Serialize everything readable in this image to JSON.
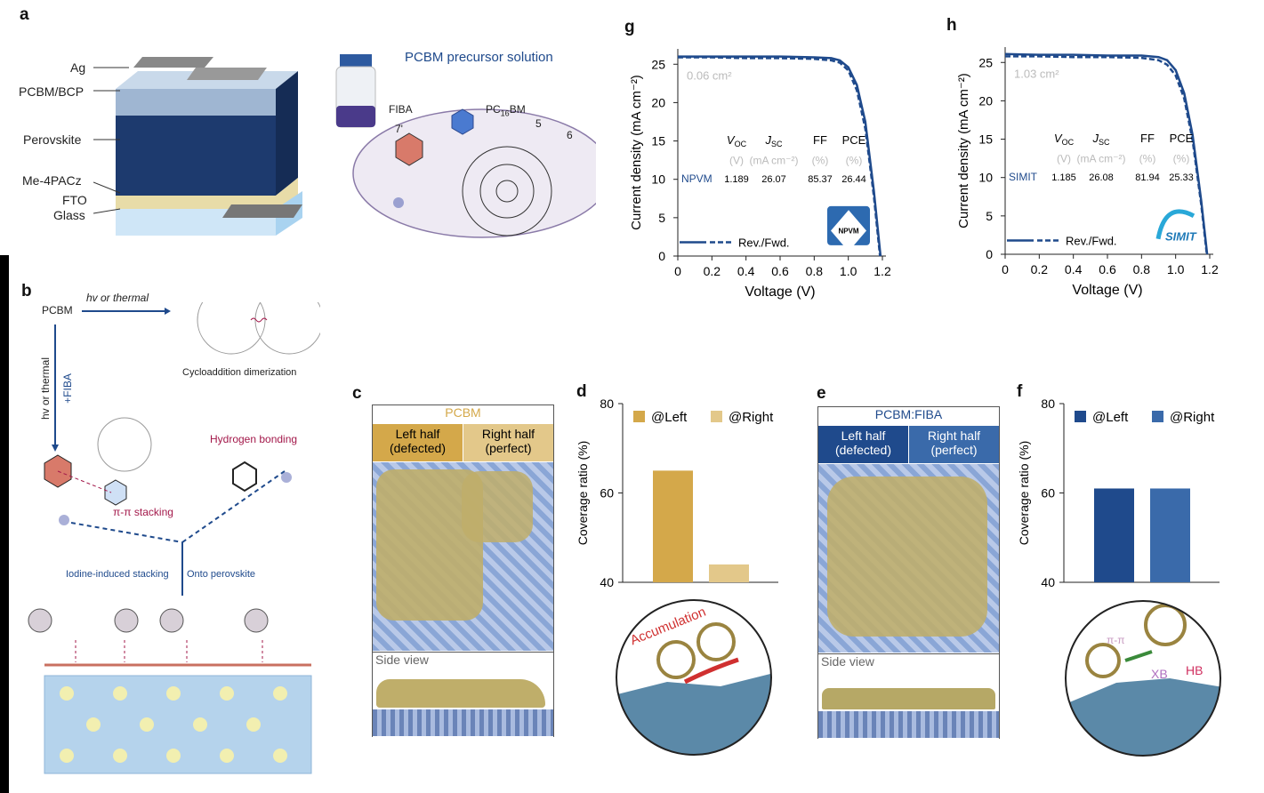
{
  "panels": {
    "a": "a",
    "b": "b",
    "c": "c",
    "d": "d",
    "e": "e",
    "f": "f",
    "g": "g",
    "h": "h"
  },
  "panel_a": {
    "layers": [
      "Ag",
      "PCBM/BCP",
      "Perovskite",
      "Me-4PACz",
      "FTO",
      "Glass"
    ],
    "precursor_title": "PCBM precursor solution",
    "fiba": "FIBA",
    "pcbm_label": "PC",
    "pcbm_sub": "16",
    "pcbm_tail": "BM",
    "num_7": "7'",
    "num_5": "5",
    "num_6": "6"
  },
  "panel_b": {
    "pcbm": "PCBM",
    "arrow_top": "hv or thermal",
    "arrow_left": "hv or thermal",
    "fiba_add": "+FIBA",
    "cycloaddition": "Cycloaddition dimerization",
    "hbond": "Hydrogen bonding",
    "pipi": "π-π stacking",
    "iodine": "Iodine-induced stacking",
    "onto": "Onto perovskite"
  },
  "panel_c": {
    "title": "PCBM",
    "left": "Left half\n(defected)",
    "right": "Right half\n(perfect)",
    "side": "Side view",
    "color": "#d4a84a"
  },
  "panel_e": {
    "title": "PCBM:FIBA",
    "left": "Left half\n(defected)",
    "right": "Right half\n(perfect)",
    "side": "Side view",
    "color": "#1f4a8c"
  },
  "panel_d_inset": {
    "label": "Accumulation"
  },
  "panel_f_inset": {
    "pipi": "π-π",
    "xb": "XB",
    "hb": "HB"
  },
  "chart_data": [
    {
      "id": "d",
      "type": "bar",
      "ylabel": "Coverage ratio (%)",
      "ylim": [
        40,
        80
      ],
      "yticks": [
        40,
        60,
        80
      ],
      "categories": [
        "@Left",
        "@Right"
      ],
      "values": [
        65,
        44
      ],
      "colors": [
        "#d4a84a",
        "#e3c88a"
      ],
      "legend": "top"
    },
    {
      "id": "f",
      "type": "bar",
      "ylabel": "Coverage ratio (%)",
      "ylim": [
        40,
        80
      ],
      "yticks": [
        40,
        60,
        80
      ],
      "categories": [
        "@Left",
        "@Right"
      ],
      "values": [
        61,
        61
      ],
      "colors": [
        "#1f4a8c",
        "#3a6aaa"
      ],
      "legend": "top"
    },
    {
      "id": "g",
      "type": "line",
      "xlabel": "Voltage (V)",
      "ylabel": "Current density (mA cm⁻²)",
      "xlim": [
        0,
        1.2
      ],
      "ylim": [
        0,
        27
      ],
      "xticks": [
        "0",
        "0.2",
        "0.4",
        "0.6",
        "0.8",
        "1.0",
        "1.2"
      ],
      "yticks": [
        "0",
        "5",
        "10",
        "15",
        "20",
        "25"
      ],
      "area": "0.06 cm²",
      "legend": "Rev./Fwd.",
      "logo": "NPVM",
      "table": {
        "headers": [
          "V_OC",
          "J_SC",
          "FF",
          "PCE"
        ],
        "units": [
          "(V)",
          "(mA cm⁻²)",
          "(%)",
          "(%)"
        ],
        "row_label": "NPVM",
        "values": [
          "1.189",
          "26.07",
          "85.37",
          "26.44"
        ]
      },
      "series": [
        {
          "name": "Rev.",
          "style": "solid",
          "x": [
            0,
            0.2,
            0.4,
            0.6,
            0.8,
            0.9,
            0.95,
            1.0,
            1.05,
            1.1,
            1.15,
            1.189
          ],
          "y": [
            26.0,
            26.0,
            26.0,
            26.0,
            25.9,
            25.8,
            25.5,
            24.6,
            22.3,
            17.5,
            8.5,
            0
          ]
        },
        {
          "name": "Fwd.",
          "style": "dashed",
          "x": [
            0,
            0.2,
            0.4,
            0.6,
            0.8,
            0.9,
            0.95,
            1.0,
            1.05,
            1.1,
            1.15,
            1.186
          ],
          "y": [
            25.9,
            25.9,
            25.8,
            25.8,
            25.7,
            25.5,
            25.2,
            24.2,
            21.6,
            16.6,
            7.8,
            0
          ]
        }
      ]
    },
    {
      "id": "h",
      "type": "line",
      "xlabel": "Voltage (V)",
      "ylabel": "Current density (mA cm⁻²)",
      "xlim": [
        0,
        1.2
      ],
      "ylim": [
        0,
        27
      ],
      "xticks": [
        "0",
        "0.2",
        "0.4",
        "0.6",
        "0.8",
        "1.0",
        "1.2"
      ],
      "yticks": [
        "0",
        "5",
        "10",
        "15",
        "20",
        "25"
      ],
      "area": "1.03 cm²",
      "legend": "Rev./Fwd.",
      "logo": "SIMIT",
      "table": {
        "headers": [
          "V_OC",
          "J_SC",
          "FF",
          "PCE"
        ],
        "units": [
          "(V)",
          "(mA cm⁻²)",
          "(%)",
          "(%)"
        ],
        "row_label": "SIMIT",
        "values": [
          "1.185",
          "26.08",
          "81.94",
          "25.33"
        ]
      },
      "series": [
        {
          "name": "Rev.",
          "style": "solid",
          "x": [
            0,
            0.2,
            0.4,
            0.6,
            0.8,
            0.9,
            0.95,
            1.0,
            1.05,
            1.1,
            1.15,
            1.185
          ],
          "y": [
            26.1,
            26.0,
            26.0,
            25.9,
            25.9,
            25.7,
            25.3,
            24.0,
            21.0,
            15.5,
            7.0,
            0
          ]
        },
        {
          "name": "Fwd.",
          "style": "dashed",
          "x": [
            0,
            0.2,
            0.4,
            0.6,
            0.8,
            0.9,
            0.95,
            1.0,
            1.05,
            1.1,
            1.15,
            1.183
          ],
          "y": [
            25.8,
            25.8,
            25.7,
            25.7,
            25.6,
            25.3,
            24.7,
            23.3,
            20.3,
            14.8,
            6.5,
            0
          ]
        }
      ]
    }
  ]
}
